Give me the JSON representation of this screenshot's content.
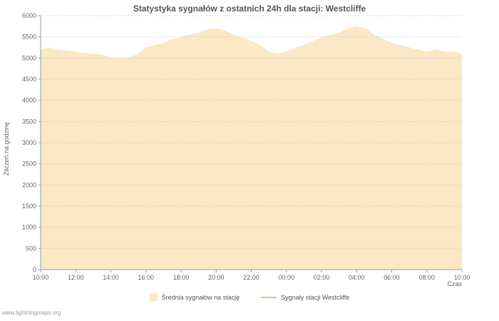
{
  "watermark": "www.lightningmaps.org",
  "colors": {
    "grid": "#c9c9c9",
    "axis": "#9a9a9a",
    "tick_text": "#666666",
    "title_text": "#555555",
    "watermark_text": "#999999"
  },
  "chart_data": {
    "type": "area",
    "title": "Statystyka sygnałów z ostatnich 24h dla stacji: Westcliffe",
    "xlabel": "Czas",
    "ylabel": "Zliczeń na godzinę",
    "ylim": [
      0,
      6000
    ],
    "ytick_step": 500,
    "grid": true,
    "legend_position": "bottom",
    "x_span_hours": 24,
    "x_tick_labels": [
      "10:00",
      "12:00",
      "14:00",
      "16:00",
      "18:00",
      "20:00",
      "22:00",
      "00:00",
      "02:00",
      "04:00",
      "06:00",
      "08:00",
      "10:00"
    ],
    "series": [
      {
        "name": "Średnia sygnałów na stację",
        "type": "area",
        "color": "#fae8c6",
        "values": [
          5200,
          5250,
          5200,
          5180,
          5150,
          5120,
          5100,
          5080,
          5020,
          5000,
          5020,
          5080,
          5250,
          5300,
          5350,
          5450,
          5500,
          5550,
          5600,
          5680,
          5700,
          5650,
          5550,
          5480,
          5400,
          5300,
          5150,
          5100,
          5150,
          5250,
          5300,
          5400,
          5500,
          5550,
          5600,
          5700,
          5750,
          5700,
          5550,
          5450,
          5350,
          5300,
          5250,
          5200,
          5150,
          5200,
          5150,
          5150,
          5100
        ]
      },
      {
        "name": "Sygnały stacji Westcliffe",
        "type": "line",
        "color": "#e2c47e",
        "values": []
      }
    ]
  }
}
